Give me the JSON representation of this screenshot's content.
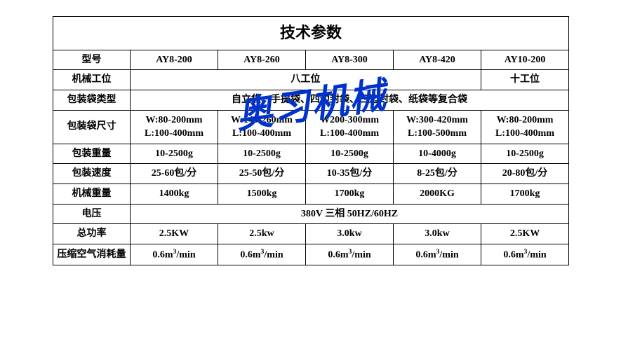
{
  "title": "技术参数",
  "watermark_text": "奥习机械",
  "watermark_color": "#0033cc",
  "border_color": "#000000",
  "background_color": "#ffffff",
  "text_color": "#000000",
  "title_fontsize": 22,
  "cell_fontsize": 14,
  "columns_count": 6,
  "label_col_width": 110,
  "data_col_width": 125,
  "rows": {
    "model": {
      "label": "型号",
      "values": [
        "AY8-200",
        "AY8-260",
        "AY8-300",
        "AY8-420",
        "AY10-200"
      ]
    },
    "station": {
      "label": "机械工位",
      "merged_value": "八工位",
      "merged_span": 4,
      "last_value": "十工位"
    },
    "bag_type": {
      "label": "包装袋类型",
      "merged_value": "自立袋、手提袋、四边封袋、三边封袋、纸袋等复合袋",
      "merged_span": 5
    },
    "bag_size": {
      "label": "包装袋尺寸",
      "values": [
        {
          "w": "W:80-200mm",
          "l": "L:100-400mm"
        },
        {
          "w": "W:140-260mm",
          "l": "L:100-400mm"
        },
        {
          "w": "W200-300mm",
          "l": "L:100-400mm"
        },
        {
          "w": "W:300-420mm",
          "l": "L:100-500mm"
        },
        {
          "w": "W:80-200mm",
          "l": "L:100-400mm"
        }
      ]
    },
    "pack_weight": {
      "label": "包装重量",
      "values": [
        "10-2500g",
        "10-2500g",
        "10-2500g",
        "10-4000g",
        "10-2500g"
      ]
    },
    "pack_speed": {
      "label": "包装速度",
      "values": [
        "25-60包/分",
        "25-50包/分",
        "10-35包/分",
        "8-25包/分",
        "20-80包/分"
      ]
    },
    "machine_weight": {
      "label": "机械重量",
      "values": [
        "1400kg",
        "1500kg",
        "1700kg",
        "2000KG",
        "1700kg"
      ]
    },
    "voltage": {
      "label": "电压",
      "merged_value": "380V 三相 50HZ/60HZ",
      "merged_span": 5
    },
    "power": {
      "label": "总功率",
      "values": [
        "2.5KW",
        "2.5kw",
        "3.0kw",
        "3.0kw",
        "2.5KW"
      ]
    },
    "air": {
      "label": "压缩空气消耗量",
      "value_html": "0.6m³/min",
      "values": [
        "0.6m³/min",
        "0.6m³/min",
        "0.6m³/min",
        "0.6m³/min",
        "0.6m³/min"
      ]
    }
  }
}
